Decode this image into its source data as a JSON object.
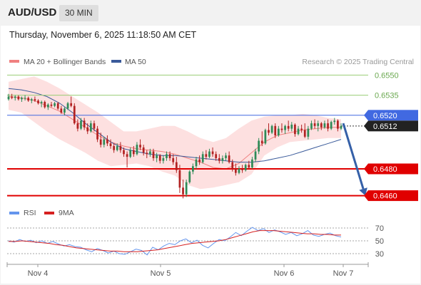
{
  "header": {
    "symbol": "AUD/USD",
    "timeframe": "30 MIN",
    "timestamp": "Thursday, November 6, 2025 11:18:50 AM CET"
  },
  "legend": {
    "ma20": "MA 20 + Bollinger Bands",
    "ma50": "MA 50",
    "credit": "Research © 2025 Trading Central",
    "rsi": "RSI",
    "rsi_ma": "9MA"
  },
  "colors": {
    "bull": "#2e8b57",
    "bear": "#b22222",
    "band_fill": "#fde0e0",
    "ma20": "#f08080",
    "ma50": "#3a5a9a",
    "resistance": "#9acd75",
    "pivot": "#4169e1",
    "support": "#e00000",
    "arrow": "#3560a8",
    "rsi_line": "#6495ed",
    "rsi_ma_line": "#d62020"
  },
  "chart_data": [
    {
      "type": "candlestick",
      "x_labels": [
        "Nov 4",
        "Nov 5",
        "Nov 6",
        "Nov 7"
      ],
      "ylim": [
        0.6455,
        0.6555
      ],
      "levels": [
        {
          "value": 0.655,
          "label": "0.6550",
          "kind": "resistance"
        },
        {
          "value": 0.6535,
          "label": "0.6535",
          "kind": "resistance"
        },
        {
          "value": 0.652,
          "label": "0.6520",
          "kind": "pivot"
        },
        {
          "value": 0.648,
          "label": "0.6480",
          "kind": "support"
        },
        {
          "value": 0.646,
          "label": "0.6460",
          "kind": "support"
        }
      ],
      "last_price": {
        "value": 0.6512,
        "label": "0.6512"
      },
      "target_arrow": {
        "from": 0.6514,
        "to": 0.646
      },
      "ohlc": [
        [
          0.6532,
          0.6536,
          0.6531,
          0.6534
        ],
        [
          0.6534,
          0.6536,
          0.6532,
          0.6533
        ],
        [
          0.6533,
          0.6535,
          0.6531,
          0.6534
        ],
        [
          0.6534,
          0.6535,
          0.6531,
          0.6532
        ],
        [
          0.6532,
          0.6534,
          0.653,
          0.6533
        ],
        [
          0.6533,
          0.6535,
          0.6531,
          0.6533
        ],
        [
          0.6533,
          0.6534,
          0.653,
          0.6531
        ],
        [
          0.6531,
          0.6533,
          0.6529,
          0.6532
        ],
        [
          0.6532,
          0.6534,
          0.653,
          0.6531
        ],
        [
          0.6531,
          0.6532,
          0.6528,
          0.6529
        ],
        [
          0.6529,
          0.6531,
          0.6526,
          0.653
        ],
        [
          0.653,
          0.6531,
          0.6525,
          0.6526
        ],
        [
          0.6526,
          0.6529,
          0.6524,
          0.6528
        ],
        [
          0.6528,
          0.653,
          0.6526,
          0.6527
        ],
        [
          0.6527,
          0.653,
          0.6526,
          0.6529
        ],
        [
          0.6529,
          0.653,
          0.6524,
          0.6525
        ],
        [
          0.6525,
          0.6527,
          0.6521,
          0.6522
        ],
        [
          0.6522,
          0.6526,
          0.652,
          0.6525
        ],
        [
          0.6525,
          0.653,
          0.6524,
          0.6529
        ],
        [
          0.6529,
          0.6534,
          0.6526,
          0.6527
        ],
        [
          0.6527,
          0.6529,
          0.6513,
          0.6514
        ],
        [
          0.6514,
          0.6517,
          0.6508,
          0.651
        ],
        [
          0.651,
          0.6518,
          0.6509,
          0.6516
        ],
        [
          0.6516,
          0.6518,
          0.6509,
          0.6511
        ],
        [
          0.6511,
          0.6514,
          0.6506,
          0.6508
        ],
        [
          0.6508,
          0.6516,
          0.6507,
          0.6514
        ],
        [
          0.6514,
          0.6516,
          0.6508,
          0.651
        ],
        [
          0.651,
          0.6512,
          0.65,
          0.6502
        ],
        [
          0.6502,
          0.6507,
          0.6496,
          0.6498
        ],
        [
          0.6498,
          0.6504,
          0.6496,
          0.6502
        ],
        [
          0.6502,
          0.6505,
          0.6497,
          0.6499
        ],
        [
          0.6499,
          0.6502,
          0.6495,
          0.6497
        ],
        [
          0.6497,
          0.6499,
          0.6492,
          0.6494
        ],
        [
          0.6494,
          0.6499,
          0.6493,
          0.6497
        ],
        [
          0.6497,
          0.65,
          0.6492,
          0.6494
        ],
        [
          0.6494,
          0.6496,
          0.6489,
          0.6491
        ],
        [
          0.6491,
          0.6493,
          0.6481,
          0.6489
        ],
        [
          0.6489,
          0.6496,
          0.6488,
          0.6494
        ],
        [
          0.6494,
          0.6497,
          0.6489,
          0.6491
        ],
        [
          0.6491,
          0.65,
          0.649,
          0.6498
        ],
        [
          0.6498,
          0.6502,
          0.6494,
          0.6496
        ],
        [
          0.6496,
          0.6498,
          0.649,
          0.6492
        ],
        [
          0.6492,
          0.6494,
          0.6488,
          0.6491
        ],
        [
          0.6491,
          0.6495,
          0.6489,
          0.6493
        ],
        [
          0.6493,
          0.6495,
          0.6486,
          0.6488
        ],
        [
          0.6488,
          0.6492,
          0.6485,
          0.649
        ],
        [
          0.649,
          0.6491,
          0.6484,
          0.6486
        ],
        [
          0.6486,
          0.649,
          0.6484,
          0.6488
        ],
        [
          0.6488,
          0.6493,
          0.6486,
          0.6491
        ],
        [
          0.6491,
          0.6493,
          0.6486,
          0.6488
        ],
        [
          0.6488,
          0.6491,
          0.6483,
          0.6485
        ],
        [
          0.6485,
          0.6489,
          0.6477,
          0.6479
        ],
        [
          0.6479,
          0.6483,
          0.6462,
          0.6466
        ],
        [
          0.6466,
          0.6472,
          0.6458,
          0.6461
        ],
        [
          0.6461,
          0.6472,
          0.6459,
          0.647
        ],
        [
          0.647,
          0.6479,
          0.6469,
          0.6478
        ],
        [
          0.6478,
          0.6484,
          0.6476,
          0.6482
        ],
        [
          0.6482,
          0.6489,
          0.648,
          0.6487
        ],
        [
          0.6487,
          0.649,
          0.6483,
          0.6485
        ],
        [
          0.6485,
          0.6493,
          0.6484,
          0.6491
        ],
        [
          0.6491,
          0.6494,
          0.6487,
          0.6489
        ],
        [
          0.6489,
          0.6495,
          0.6488,
          0.6493
        ],
        [
          0.6493,
          0.6496,
          0.6489,
          0.6491
        ],
        [
          0.6491,
          0.6493,
          0.6486,
          0.6488
        ],
        [
          0.6488,
          0.6491,
          0.6484,
          0.6486
        ],
        [
          0.6486,
          0.649,
          0.6484,
          0.6488
        ],
        [
          0.6488,
          0.6492,
          0.6486,
          0.649
        ],
        [
          0.649,
          0.6493,
          0.6484,
          0.6485
        ],
        [
          0.6485,
          0.6487,
          0.6478,
          0.648
        ],
        [
          0.648,
          0.6484,
          0.6475,
          0.6477
        ],
        [
          0.6477,
          0.6482,
          0.6476,
          0.648
        ],
        [
          0.648,
          0.6483,
          0.6477,
          0.6479
        ],
        [
          0.6479,
          0.6484,
          0.6478,
          0.6483
        ],
        [
          0.6483,
          0.6486,
          0.648,
          0.6481
        ],
        [
          0.6481,
          0.6489,
          0.648,
          0.6487
        ],
        [
          0.6487,
          0.6495,
          0.6485,
          0.6493
        ],
        [
          0.6493,
          0.6503,
          0.6491,
          0.6501
        ],
        [
          0.6501,
          0.6508,
          0.6497,
          0.6499
        ],
        [
          0.6499,
          0.651,
          0.6498,
          0.6509
        ],
        [
          0.6509,
          0.6514,
          0.6505,
          0.6507
        ],
        [
          0.6507,
          0.6513,
          0.6506,
          0.6512
        ],
        [
          0.6512,
          0.6514,
          0.6503,
          0.6505
        ],
        [
          0.6505,
          0.6512,
          0.6504,
          0.651
        ],
        [
          0.651,
          0.6514,
          0.6507,
          0.6509
        ],
        [
          0.6509,
          0.6513,
          0.6506,
          0.6512
        ],
        [
          0.6512,
          0.6516,
          0.6508,
          0.651
        ],
        [
          0.651,
          0.6515,
          0.6508,
          0.6513
        ],
        [
          0.6513,
          0.6514,
          0.6504,
          0.6506
        ],
        [
          0.6506,
          0.6512,
          0.6505,
          0.651
        ],
        [
          0.651,
          0.6513,
          0.6507,
          0.6509
        ],
        [
          0.6509,
          0.6514,
          0.6503,
          0.6504
        ],
        [
          0.6504,
          0.6512,
          0.6502,
          0.651
        ],
        [
          0.651,
          0.6516,
          0.6509,
          0.6514
        ],
        [
          0.6514,
          0.6517,
          0.651,
          0.6512
        ],
        [
          0.6512,
          0.6516,
          0.6508,
          0.6514
        ],
        [
          0.6514,
          0.6515,
          0.6509,
          0.6511
        ],
        [
          0.6511,
          0.6516,
          0.651,
          0.6514
        ],
        [
          0.6514,
          0.6517,
          0.6508,
          0.651
        ],
        [
          0.651,
          0.6516,
          0.6509,
          0.6515
        ],
        [
          0.6515,
          0.6518,
          0.6513,
          0.6516
        ],
        [
          0.6516,
          0.6517,
          0.6508,
          0.651
        ],
        [
          0.651,
          0.6514,
          0.6509,
          0.6512
        ]
      ],
      "bollinger": {
        "upper": [
          0.6545,
          0.6547,
          0.6549,
          0.6545,
          0.654,
          0.6534,
          0.6528,
          0.6522,
          0.6515,
          0.6508,
          0.6508,
          0.651,
          0.6512,
          0.6512,
          0.6508,
          0.6503,
          0.65,
          0.6503,
          0.651,
          0.6516,
          0.6519,
          0.652,
          0.652,
          0.6521,
          0.652,
          0.6518,
          0.6517
        ],
        "mid": [
          0.6534,
          0.6533,
          0.6531,
          0.6527,
          0.6523,
          0.6517,
          0.6511,
          0.6505,
          0.65,
          0.6497,
          0.6495,
          0.6494,
          0.6493,
          0.6491,
          0.6488,
          0.6485,
          0.6481,
          0.648,
          0.6484,
          0.6492,
          0.65,
          0.6505,
          0.6507,
          0.6509,
          0.651,
          0.6511,
          0.6511
        ],
        "lower": [
          0.6524,
          0.6522,
          0.6515,
          0.6508,
          0.6502,
          0.6497,
          0.6492,
          0.6486,
          0.6482,
          0.6483,
          0.6484,
          0.6482,
          0.6478,
          0.6475,
          0.6468,
          0.6465,
          0.6466,
          0.6468,
          0.647,
          0.6476,
          0.649,
          0.6496,
          0.65,
          0.6501,
          0.6502,
          0.6503,
          0.6503
        ]
      },
      "ma50": [
        0.654,
        0.6539,
        0.6537,
        0.6534,
        0.6529,
        0.6522,
        0.6514,
        0.6507,
        0.65,
        0.6495,
        0.6493,
        0.6491,
        0.649,
        0.649,
        0.6489,
        0.6488,
        0.6487,
        0.6486,
        0.6485,
        0.6485,
        0.6486,
        0.6488,
        0.649,
        0.6493,
        0.6496,
        0.6499,
        0.6502
      ]
    },
    {
      "type": "line",
      "ylim": [
        20,
        80
      ],
      "ticks": [
        70,
        50,
        30
      ],
      "series": [
        {
          "name": "RSI",
          "values": [
            50,
            48,
            52,
            49,
            51,
            47,
            50,
            46,
            49,
            45,
            42,
            44,
            41,
            40,
            36,
            33,
            38,
            35,
            31,
            34,
            30,
            29,
            33,
            37,
            35,
            28,
            40,
            36,
            42,
            46,
            44,
            50,
            53,
            47,
            51,
            43,
            39,
            46,
            52,
            50,
            56,
            63,
            58,
            65,
            71,
            66,
            69,
            63,
            67,
            64,
            60,
            63,
            58,
            61,
            66,
            59,
            57,
            60,
            62,
            58,
            56
          ]
        },
        {
          "name": "9MA",
          "values": [
            49,
            49,
            50,
            49,
            48,
            47,
            46,
            44,
            43,
            41,
            39,
            38,
            37,
            36,
            35,
            34,
            34,
            33,
            33,
            33,
            34,
            35,
            36,
            38,
            40,
            42,
            44,
            46,
            47,
            48,
            49,
            50,
            52,
            55,
            58,
            61,
            64,
            66,
            66,
            66,
            65,
            64,
            63,
            62,
            61,
            61,
            60,
            60,
            59,
            59
          ]
        }
      ]
    }
  ]
}
